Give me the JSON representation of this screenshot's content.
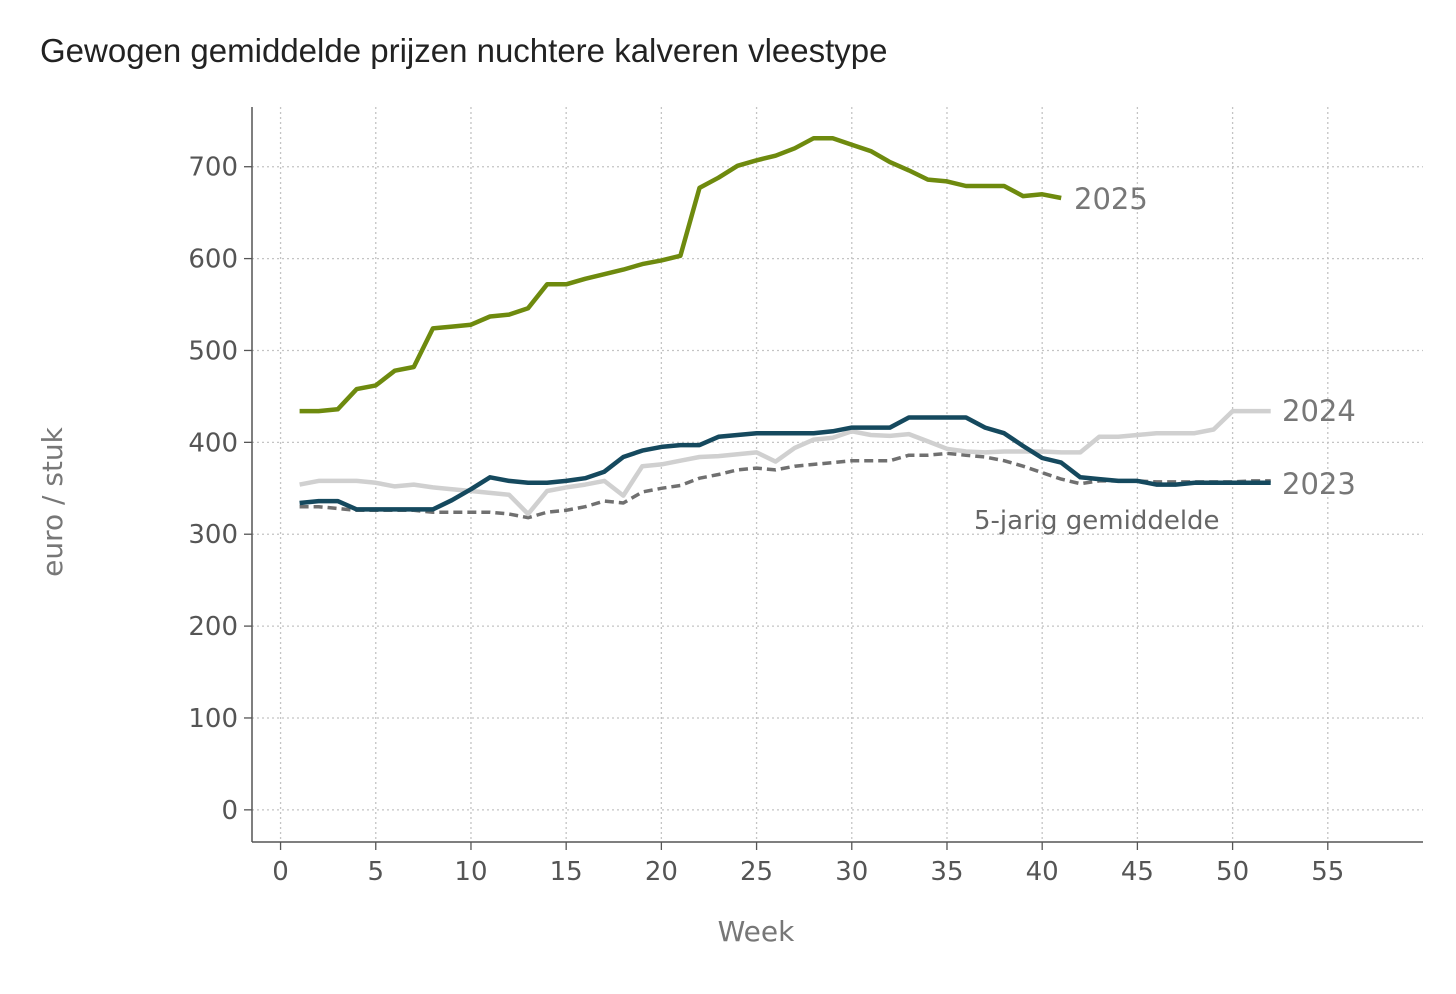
{
  "chart_data": {
    "type": "line",
    "title": "Gewogen gemiddelde prijzen nuchtere kalveren vleestype",
    "xlabel": "Week",
    "ylabel": "euro / stuk",
    "xlim": [
      -1.5,
      60
    ],
    "ylim": [
      -35,
      765
    ],
    "x_ticks": [
      0,
      5,
      10,
      15,
      20,
      25,
      30,
      35,
      40,
      45,
      50,
      55
    ],
    "y_ticks": [
      0,
      100,
      200,
      300,
      400,
      500,
      600,
      700
    ],
    "grid": true,
    "legend": "direct labels at line ends",
    "series": [
      {
        "name": "5-jarig gemiddelde",
        "color": "#707070",
        "dashed": true,
        "x": [
          1,
          2,
          3,
          4,
          5,
          6,
          7,
          8,
          9,
          10,
          11,
          12,
          13,
          14,
          15,
          16,
          17,
          18,
          19,
          20,
          21,
          22,
          23,
          24,
          25,
          26,
          27,
          28,
          29,
          30,
          31,
          32,
          33,
          34,
          35,
          36,
          37,
          38,
          39,
          40,
          41,
          42,
          43,
          44,
          45,
          46,
          47,
          48,
          49,
          50,
          51,
          52
        ],
        "values": [
          330,
          330,
          328,
          326,
          326,
          326,
          326,
          324,
          324,
          324,
          324,
          322,
          318,
          324,
          326,
          330,
          336,
          334,
          346,
          350,
          353,
          361,
          365,
          370,
          372,
          370,
          374,
          376,
          378,
          380,
          380,
          380,
          386,
          386,
          388,
          386,
          384,
          380,
          374,
          367,
          360,
          355,
          358,
          358,
          358,
          357,
          357,
          357,
          357,
          357,
          358,
          358
        ]
      },
      {
        "name": "2024",
        "color": "#d0d0d0",
        "x": [
          1,
          2,
          3,
          4,
          5,
          6,
          7,
          8,
          9,
          10,
          11,
          12,
          13,
          14,
          15,
          16,
          17,
          18,
          19,
          20,
          21,
          22,
          23,
          24,
          25,
          26,
          27,
          28,
          29,
          30,
          31,
          32,
          33,
          34,
          35,
          36,
          37,
          38,
          39,
          40,
          41,
          42,
          43,
          44,
          45,
          46,
          47,
          48,
          49,
          50,
          51,
          52
        ],
        "values": [
          354,
          358,
          358,
          358,
          356,
          352,
          354,
          351,
          349,
          347,
          345,
          343,
          322,
          347,
          351,
          354,
          358,
          342,
          374,
          376,
          380,
          384,
          385,
          387,
          389,
          379,
          394,
          403,
          405,
          412,
          408,
          407,
          409,
          401,
          393,
          390,
          389,
          390,
          390,
          390,
          389,
          389,
          406,
          406,
          408,
          410,
          410,
          410,
          414,
          434,
          434,
          434
        ]
      },
      {
        "name": "2023",
        "color": "#15495e",
        "x": [
          1,
          2,
          3,
          4,
          5,
          6,
          7,
          8,
          9,
          10,
          11,
          12,
          13,
          14,
          15,
          16,
          17,
          18,
          19,
          20,
          21,
          22,
          23,
          24,
          25,
          26,
          27,
          28,
          29,
          30,
          31,
          32,
          33,
          34,
          35,
          36,
          37,
          38,
          39,
          40,
          41,
          42,
          43,
          44,
          45,
          46,
          47,
          48,
          49,
          50,
          51,
          52
        ],
        "values": [
          334,
          336,
          336,
          327,
          327,
          327,
          327,
          327,
          337,
          349,
          362,
          358,
          356,
          356,
          358,
          361,
          368,
          384,
          391,
          395,
          397,
          397,
          406,
          408,
          410,
          410,
          410,
          410,
          412,
          416,
          416,
          416,
          427,
          427,
          427,
          427,
          416,
          410,
          396,
          383,
          378,
          362,
          360,
          358,
          358,
          354,
          354,
          356,
          356,
          356,
          356,
          356
        ]
      },
      {
        "name": "2025",
        "color": "#6e8a0e",
        "x": [
          1,
          2,
          3,
          4,
          5,
          6,
          7,
          8,
          9,
          10,
          11,
          12,
          13,
          14,
          15,
          16,
          17,
          18,
          19,
          20,
          21,
          22,
          23,
          24,
          25,
          26,
          27,
          28,
          29,
          30,
          31,
          32,
          33,
          34,
          35,
          36,
          37,
          38,
          39,
          40,
          41
        ],
        "values": [
          434,
          434,
          436,
          458,
          462,
          478,
          482,
          524,
          526,
          528,
          537,
          539,
          546,
          572,
          572,
          578,
          583,
          588,
          594,
          598,
          603,
          677,
          688,
          701,
          707,
          712,
          720,
          731,
          731,
          724,
          717,
          705,
          696,
          686,
          684,
          679,
          679,
          679,
          668,
          670,
          666
        ]
      }
    ],
    "labels": {
      "2025": "2025",
      "2024": "2024",
      "2023": "2023",
      "avg": "5-jarig gemiddelde"
    }
  }
}
